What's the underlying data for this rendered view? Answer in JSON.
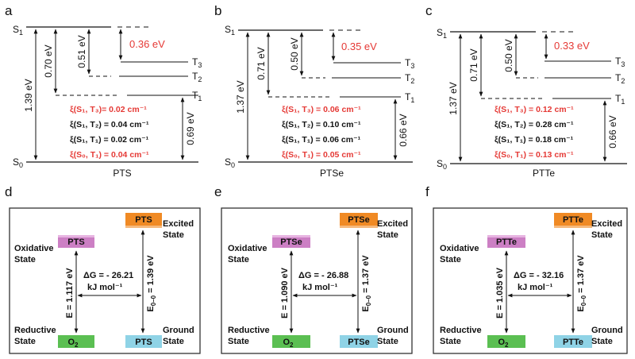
{
  "top_panels": [
    {
      "letter": "a",
      "name": "PTS",
      "s1": "S",
      "s1_sub": "1",
      "s0": "S",
      "s0_sub": "0",
      "t1": "T",
      "t1_sub": "1",
      "t2": "T",
      "t2_sub": "2",
      "t3": "T",
      "t3_sub": "3",
      "gap_s0_s1": "1.39 eV",
      "gap_s1_t1": "0.70 eV",
      "gap_s1_t2": "0.51 eV",
      "gap_s1_t3": "0.36 eV",
      "gap_s0_t1": "0.69 eV",
      "xi": [
        {
          "text": "ξ(S₁, T₃)= 0.02 cm⁻¹",
          "color": "#e53935"
        },
        {
          "text": "ξ(S₁, T₂) = 0.04 cm⁻¹",
          "color": "#111111"
        },
        {
          "text": "ξ(S₁, T₁) = 0.02 cm⁻¹",
          "color": "#111111"
        },
        {
          "text": "ξ(S₀, T₁) = 0.04 cm⁻¹",
          "color": "#e53935"
        }
      ]
    },
    {
      "letter": "b",
      "name": "PTSe",
      "s1": "S",
      "s1_sub": "1",
      "s0": "S",
      "s0_sub": "0",
      "t1": "T",
      "t1_sub": "1",
      "t2": "T",
      "t2_sub": "2",
      "t3": "T",
      "t3_sub": "3",
      "gap_s0_s1": "1.37 eV",
      "gap_s1_t1": "0.71 eV",
      "gap_s1_t2": "0.50 eV",
      "gap_s1_t3": "0.35 eV",
      "gap_s0_t1": "0.66 eV",
      "xi": [
        {
          "text": "ξ(S₁, T₃) = 0.06 cm⁻¹",
          "color": "#e53935"
        },
        {
          "text": "ξ(S₁, T₂) = 0.10 cm⁻¹",
          "color": "#111111"
        },
        {
          "text": "ξ(S₁, T₁) = 0.06 cm⁻¹",
          "color": "#111111"
        },
        {
          "text": "ξ(S₀, T₁) = 0.05 cm⁻¹",
          "color": "#e53935"
        }
      ]
    },
    {
      "letter": "c",
      "name": "PTTe",
      "s1": "S",
      "s1_sub": "1",
      "s0": "S",
      "s0_sub": "0",
      "t1": "T",
      "t1_sub": "1",
      "t2": "T",
      "t2_sub": "2",
      "t3": "T",
      "t3_sub": "3",
      "gap_s0_s1": "1.37 eV",
      "gap_s1_t1": "0.71 eV",
      "gap_s1_t2": "0.50 eV",
      "gap_s1_t3": "0.33 eV",
      "gap_s0_t1": "0.66 eV",
      "xi": [
        {
          "text": "ξ(S₁, T₃) = 0.12 cm⁻¹",
          "color": "#e53935"
        },
        {
          "text": "ξ(S₁, T₂) = 0.28 cm⁻¹",
          "color": "#111111"
        },
        {
          "text": "ξ(S₁, T₁) = 0.18 cm⁻¹",
          "color": "#111111"
        },
        {
          "text": "ξ(S₀, T₁) = 0.13 cm⁻¹",
          "color": "#e53935"
        }
      ]
    }
  ],
  "bottom_panels": [
    {
      "letter": "d",
      "oxidative_box": "PTS",
      "excited_box": "PTS",
      "o2_box": "O",
      "o2_sub": "2",
      "ground_box": "PTS",
      "oxidative_label": [
        "Oxidative",
        "State"
      ],
      "excited_label": [
        "Excited",
        "State"
      ],
      "reductive_label": [
        "Reductive",
        "State"
      ],
      "ground_label": [
        "Ground",
        "State"
      ],
      "e_label": "E = 1.117 eV",
      "e00_main": "E",
      "e00_sub": "0–0",
      "e00_val": " = 1.39 eV",
      "dg_line1": "ΔG = - 26.21",
      "dg_line2": "kJ mol⁻¹"
    },
    {
      "letter": "e",
      "oxidative_box": "PTSe",
      "excited_box": "PTSe",
      "o2_box": "O",
      "o2_sub": "2",
      "ground_box": "PTSe",
      "oxidative_label": [
        "Oxidative",
        "State"
      ],
      "excited_label": [
        "Excited",
        "State"
      ],
      "reductive_label": [
        "Reductive",
        "State"
      ],
      "ground_label": [
        "Ground",
        "State"
      ],
      "e_label": "E = 1.090 eV",
      "e00_main": "E",
      "e00_sub": "0–0",
      "e00_val": " = 1.37 eV",
      "dg_line1": "ΔG = - 26.88",
      "dg_line2": "kJ mol⁻¹"
    },
    {
      "letter": "f",
      "oxidative_box": "PTTe",
      "excited_box": "PTTe",
      "o2_box": "O",
      "o2_sub": "2",
      "ground_box": "PTTe",
      "oxidative_label": [
        "Oxidative",
        "State"
      ],
      "excited_label": [
        "Excited",
        "State"
      ],
      "reductive_label": [
        "Reductive",
        "State"
      ],
      "ground_label": [
        "Ground",
        "State"
      ],
      "e_label": "E = 1.035 eV",
      "e00_main": "E",
      "e00_sub": "0–0",
      "e00_val": " = 1.37 eV",
      "dg_line1": "ΔG = - 32.16",
      "dg_line2": "kJ mol⁻¹"
    }
  ],
  "colors": {
    "oxidative_box": "#cc7fc4",
    "excited_box": "#f08a24",
    "o2_box": "#5bbf52",
    "ground_box": "#8fd3e6",
    "highlight_red": "#e53935"
  }
}
